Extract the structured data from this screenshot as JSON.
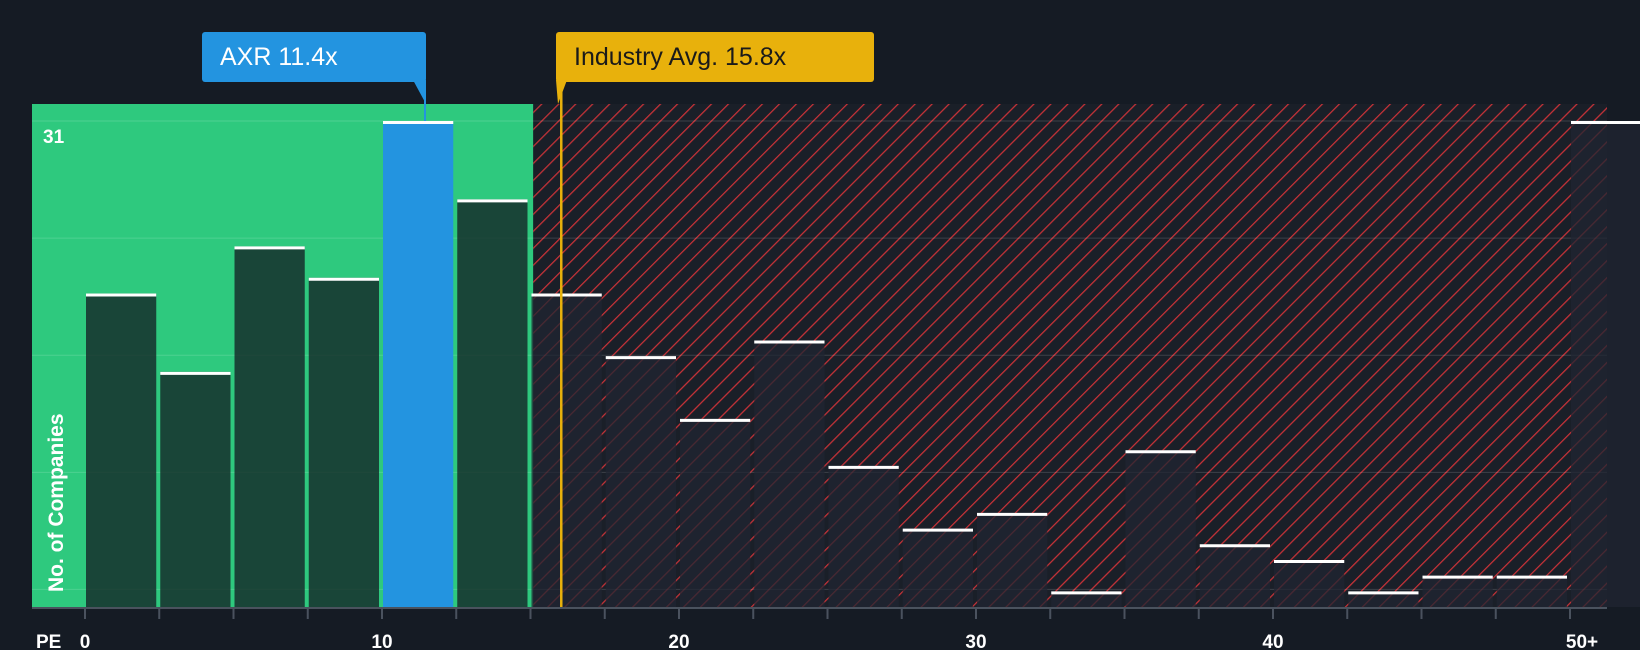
{
  "colors": {
    "background": "#151b24",
    "undervalued_zone": "#2ec97e",
    "company_bar": "#2394e0",
    "industry_marker": "#e8b10c",
    "overvalued_hatch": "#c83238",
    "bar_fill_green_zone": "#1f4a40",
    "bar_fill_red_zone": "#242b36",
    "bar_top_line": "#ffffff"
  },
  "company_label": {
    "ticker": "AXR",
    "pe_display": "AXR 11.4x",
    "pe": 11.4
  },
  "industry_label": {
    "display": "Industry Avg. 15.8x",
    "pe": 15.8
  },
  "chart_data": {
    "type": "bar",
    "title": "",
    "xlabel": "PE",
    "ylabel": "No. of Companies",
    "x_tick_labels": [
      "0",
      "10",
      "20",
      "30",
      "40",
      "50+"
    ],
    "x_tick_values": [
      0,
      10,
      20,
      30,
      40,
      50
    ],
    "y_tick_label": "31",
    "ylim": [
      0,
      31
    ],
    "bin_width": 2.5,
    "bins": [
      {
        "start": 0,
        "count": 20
      },
      {
        "start": 2.5,
        "count": 15
      },
      {
        "start": 5,
        "count": 23
      },
      {
        "start": 7.5,
        "count": 21
      },
      {
        "start": 10,
        "count": 31,
        "highlight": true
      },
      {
        "start": 12.5,
        "count": 26
      },
      {
        "start": 15,
        "count": 20
      },
      {
        "start": 17.5,
        "count": 16
      },
      {
        "start": 20,
        "count": 12
      },
      {
        "start": 22.5,
        "count": 17
      },
      {
        "start": 25,
        "count": 9
      },
      {
        "start": 27.5,
        "count": 5
      },
      {
        "start": 30,
        "count": 6
      },
      {
        "start": 32.5,
        "count": 1
      },
      {
        "start": 35,
        "count": 10
      },
      {
        "start": 37.5,
        "count": 4
      },
      {
        "start": 40,
        "count": 3
      },
      {
        "start": 42.5,
        "count": 1
      },
      {
        "start": 45,
        "count": 2
      },
      {
        "start": 47.5,
        "count": 2
      },
      {
        "start": 50,
        "count": 31
      }
    ],
    "company_pe": 11.4,
    "industry_avg_pe": 15.8
  }
}
